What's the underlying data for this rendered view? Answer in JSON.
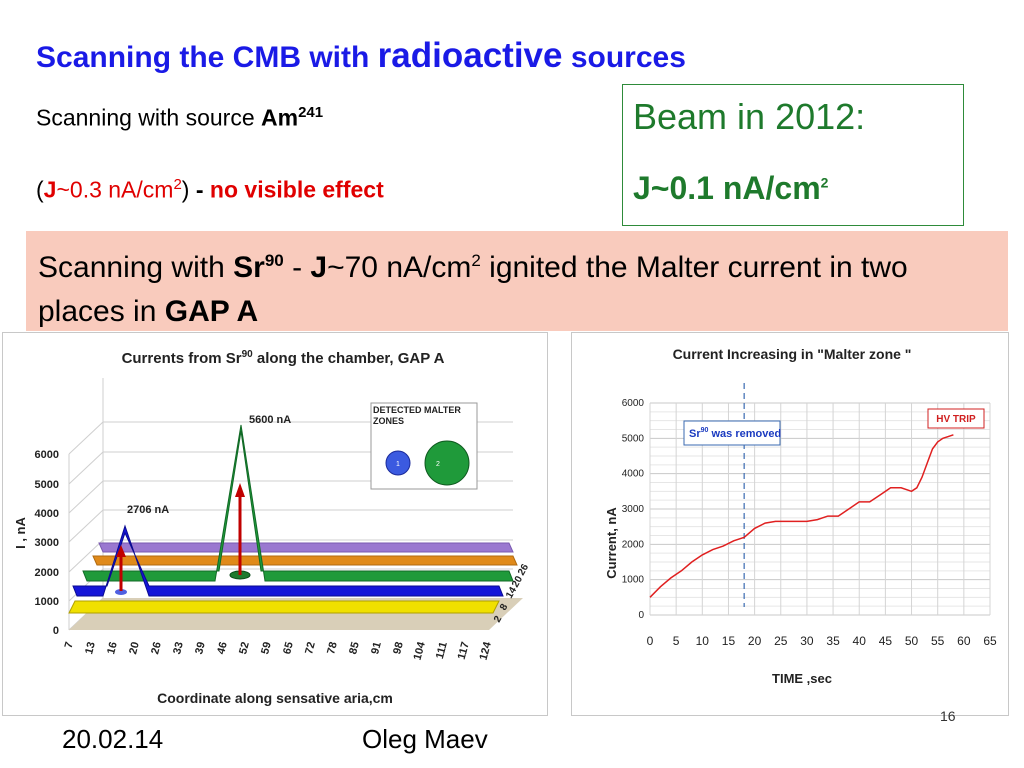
{
  "title": {
    "part1": "Scanning  the CMB with ",
    "part2": "radioactive",
    "part3": " sources"
  },
  "am_line": {
    "text": "Scanning with source ",
    "isotope": "Am",
    "mass": "241"
  },
  "current_line": {
    "open_paren": "(",
    "j": "J",
    "value": "~0.3 nA/cm",
    "exp": "2",
    "close_paren": ")",
    "dash": " - ",
    "effect": "no visible effect"
  },
  "beam_box": {
    "title": "Beam in 2012:",
    "value": "J~0.1 nA/cm",
    "exp": "2"
  },
  "sr_banner": {
    "t1": "Scanning with ",
    "isotope": "Sr",
    "mass": "90",
    "t2": " - ",
    "j": "J",
    "t3": "~70 nA/cm",
    "exp": "2",
    "t4": " ignited the Malter current in two places in ",
    "gap": "GAP A"
  },
  "chart_left": {
    "title_a": "Currents from Sr",
    "title_sup": "90",
    "title_b": " along the chamber, GAP A",
    "ylabel": "I , nA",
    "xlabel": "Coordinate along sensative aria,cm",
    "yticks": [
      "0",
      "1000",
      "2000",
      "3000",
      "4000",
      "5000",
      "6000"
    ],
    "xticks": [
      "7",
      "13",
      "16",
      "20",
      "26",
      "33",
      "39",
      "46",
      "52",
      "59",
      "65",
      "72",
      "78",
      "85",
      "91",
      "98",
      "104",
      "111",
      "117",
      "124"
    ],
    "ztics": [
      "26",
      "20",
      "14",
      "8",
      "2"
    ],
    "peak1_label": "2706 nA",
    "peak2_label": "5600 nA",
    "legend_title": "DETECTED MALTER ZONES",
    "legend_1": "1",
    "legend_2": "2",
    "colors": {
      "yellow": "#f0e000",
      "blue": "#1515d8",
      "green": "#1f9a3a",
      "orange": "#e08a1a",
      "purple": "#9a78d0",
      "floor": "#d9cfb8"
    }
  },
  "chart_right": {
    "title": "Current Increasing in \"Malter zone \"",
    "ylabel": "Current, nA",
    "xlabel": "TIME ,sec",
    "yticks": [
      "0",
      "1000",
      "2000",
      "3000",
      "4000",
      "5000",
      "6000"
    ],
    "xticks": [
      "0",
      "5",
      "10",
      "15",
      "20",
      "25",
      "30",
      "35",
      "40",
      "45",
      "50",
      "55",
      "60",
      "65"
    ],
    "removed_a": "Sr",
    "removed_sup": "90",
    "removed_b": " was removed",
    "hv_trip": "HV TRIP",
    "line_color": "#e02020"
  },
  "chart_data": [
    {
      "type": "area",
      "title": "Currents from Sr90 along the chamber, GAP A",
      "xlabel": "Coordinate along sensative aria,cm",
      "ylabel": "I , nA",
      "ylim": [
        0,
        6000
      ],
      "annotations": [
        "2706 nA",
        "5600 nA"
      ],
      "legend": "top-right",
      "legend_title": "DETECTED MALTER ZONES"
    },
    {
      "type": "line",
      "title": "Current Increasing in \"Malter zone \"",
      "xlabel": "TIME ,sec",
      "ylabel": "Current, nA",
      "xlim": [
        0,
        65
      ],
      "ylim": [
        0,
        6000
      ],
      "grid": true,
      "x": [
        0,
        2,
        4,
        6,
        8,
        10,
        12,
        14,
        16,
        18,
        20,
        22,
        24,
        26,
        28,
        30,
        32,
        34,
        36,
        38,
        40,
        42,
        44,
        46,
        48,
        50,
        51,
        52,
        53,
        54,
        55,
        56,
        57,
        58
      ],
      "y": [
        500,
        800,
        1050,
        1250,
        1500,
        1700,
        1850,
        1950,
        2100,
        2200,
        2450,
        2600,
        2650,
        2650,
        2650,
        2650,
        2700,
        2800,
        2800,
        3000,
        3200,
        3200,
        3400,
        3600,
        3600,
        3500,
        3600,
        3900,
        4300,
        4700,
        4900,
        5000,
        5050,
        5100
      ],
      "annotations": [
        "Sr90 was removed",
        "HV TRIP"
      ]
    }
  ],
  "footer": {
    "date": "20.02.14",
    "author": "Oleg Maev",
    "page": "16"
  }
}
